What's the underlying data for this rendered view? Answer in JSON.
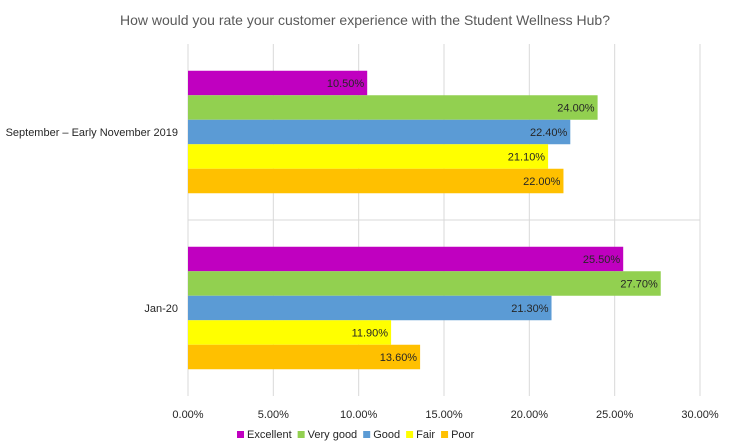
{
  "chart_data": {
    "type": "bar",
    "orientation": "horizontal",
    "title": "How would you rate your customer experience with the Student Wellness Hub?",
    "xlabel": "",
    "ylabel": "",
    "xlim": [
      0,
      30
    ],
    "x_ticks": [
      "0.00%",
      "5.00%",
      "10.00%",
      "15.00%",
      "20.00%",
      "25.00%",
      "30.00%"
    ],
    "grid": true,
    "legend_position": "bottom",
    "categories": [
      "September – Early November 2019",
      "Jan-20"
    ],
    "series": [
      {
        "name": "Excellent",
        "color": "#c000c0",
        "values": [
          10.5,
          25.5
        ],
        "labels": [
          "10.50%",
          "25.50%"
        ]
      },
      {
        "name": "Very good",
        "color": "#92d050",
        "values": [
          24.0,
          27.7
        ],
        "labels": [
          "24.00%",
          "27.70%"
        ]
      },
      {
        "name": "Good",
        "color": "#5b9bd5",
        "values": [
          22.4,
          21.3
        ],
        "labels": [
          "22.40%",
          "21.30%"
        ]
      },
      {
        "name": "Fair",
        "color": "#ffff00",
        "values": [
          21.1,
          11.9
        ],
        "labels": [
          "21.10%",
          "11.90%"
        ]
      },
      {
        "name": "Poor",
        "color": "#ffc000",
        "values": [
          22.0,
          13.6
        ],
        "labels": [
          "22.00%",
          "13.60%"
        ]
      }
    ]
  }
}
